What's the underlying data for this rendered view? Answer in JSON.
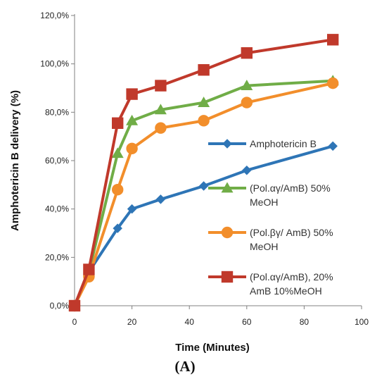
{
  "chart_data": {
    "type": "line",
    "xlabel": "Time (Minutes)",
    "ylabel": "Amphotericin B delivery (%)",
    "panel_label": "(A)",
    "xlim": [
      0,
      100
    ],
    "ylim": [
      0,
      120
    ],
    "x_ticks": [
      "0",
      "20",
      "40",
      "60",
      "80",
      "100"
    ],
    "x_tick_values": [
      0,
      20,
      40,
      60,
      80,
      100
    ],
    "y_ticks": [
      "0,0%",
      "20,0%",
      "40,0%",
      "60,0%",
      "80,0%",
      "100,0%",
      "120,0%"
    ],
    "y_tick_values": [
      0,
      20,
      40,
      60,
      80,
      100,
      120
    ],
    "grid": false,
    "legend_position": "right",
    "series": [
      {
        "name_lines": [
          "Amphotericin B"
        ],
        "color": "#2e75b6",
        "marker": "diamond",
        "x": [
          0,
          5,
          15,
          20,
          30,
          45,
          60,
          90
        ],
        "y": [
          0,
          14,
          32,
          40,
          44,
          49.5,
          56,
          66
        ]
      },
      {
        "name_lines": [
          "(Pol.αγ/AmB) 50%",
          "MeOH"
        ],
        "color": "#70ad47",
        "marker": "triangle",
        "x": [
          0,
          5,
          15,
          20,
          30,
          45,
          60,
          90
        ],
        "y": [
          0,
          14,
          63,
          76.5,
          81,
          84,
          91,
          93
        ]
      },
      {
        "name_lines": [
          "(Pol.βγ/ AmB) 50%",
          "MeOH"
        ],
        "color": "#f28e2b",
        "marker": "circle",
        "x": [
          0,
          5,
          15,
          20,
          30,
          45,
          60,
          90
        ],
        "y": [
          0,
          12,
          48,
          65,
          73.5,
          76.5,
          84,
          92
        ]
      },
      {
        "name_lines": [
          "(Pol.αγ/AmB), 20%",
          "AmB 10%MeOH"
        ],
        "color": "#c0392b",
        "marker": "square",
        "x": [
          0,
          5,
          15,
          20,
          30,
          45,
          60,
          90
        ],
        "y": [
          0,
          15,
          75.5,
          87.5,
          91,
          97.5,
          104.5,
          110
        ]
      }
    ]
  }
}
